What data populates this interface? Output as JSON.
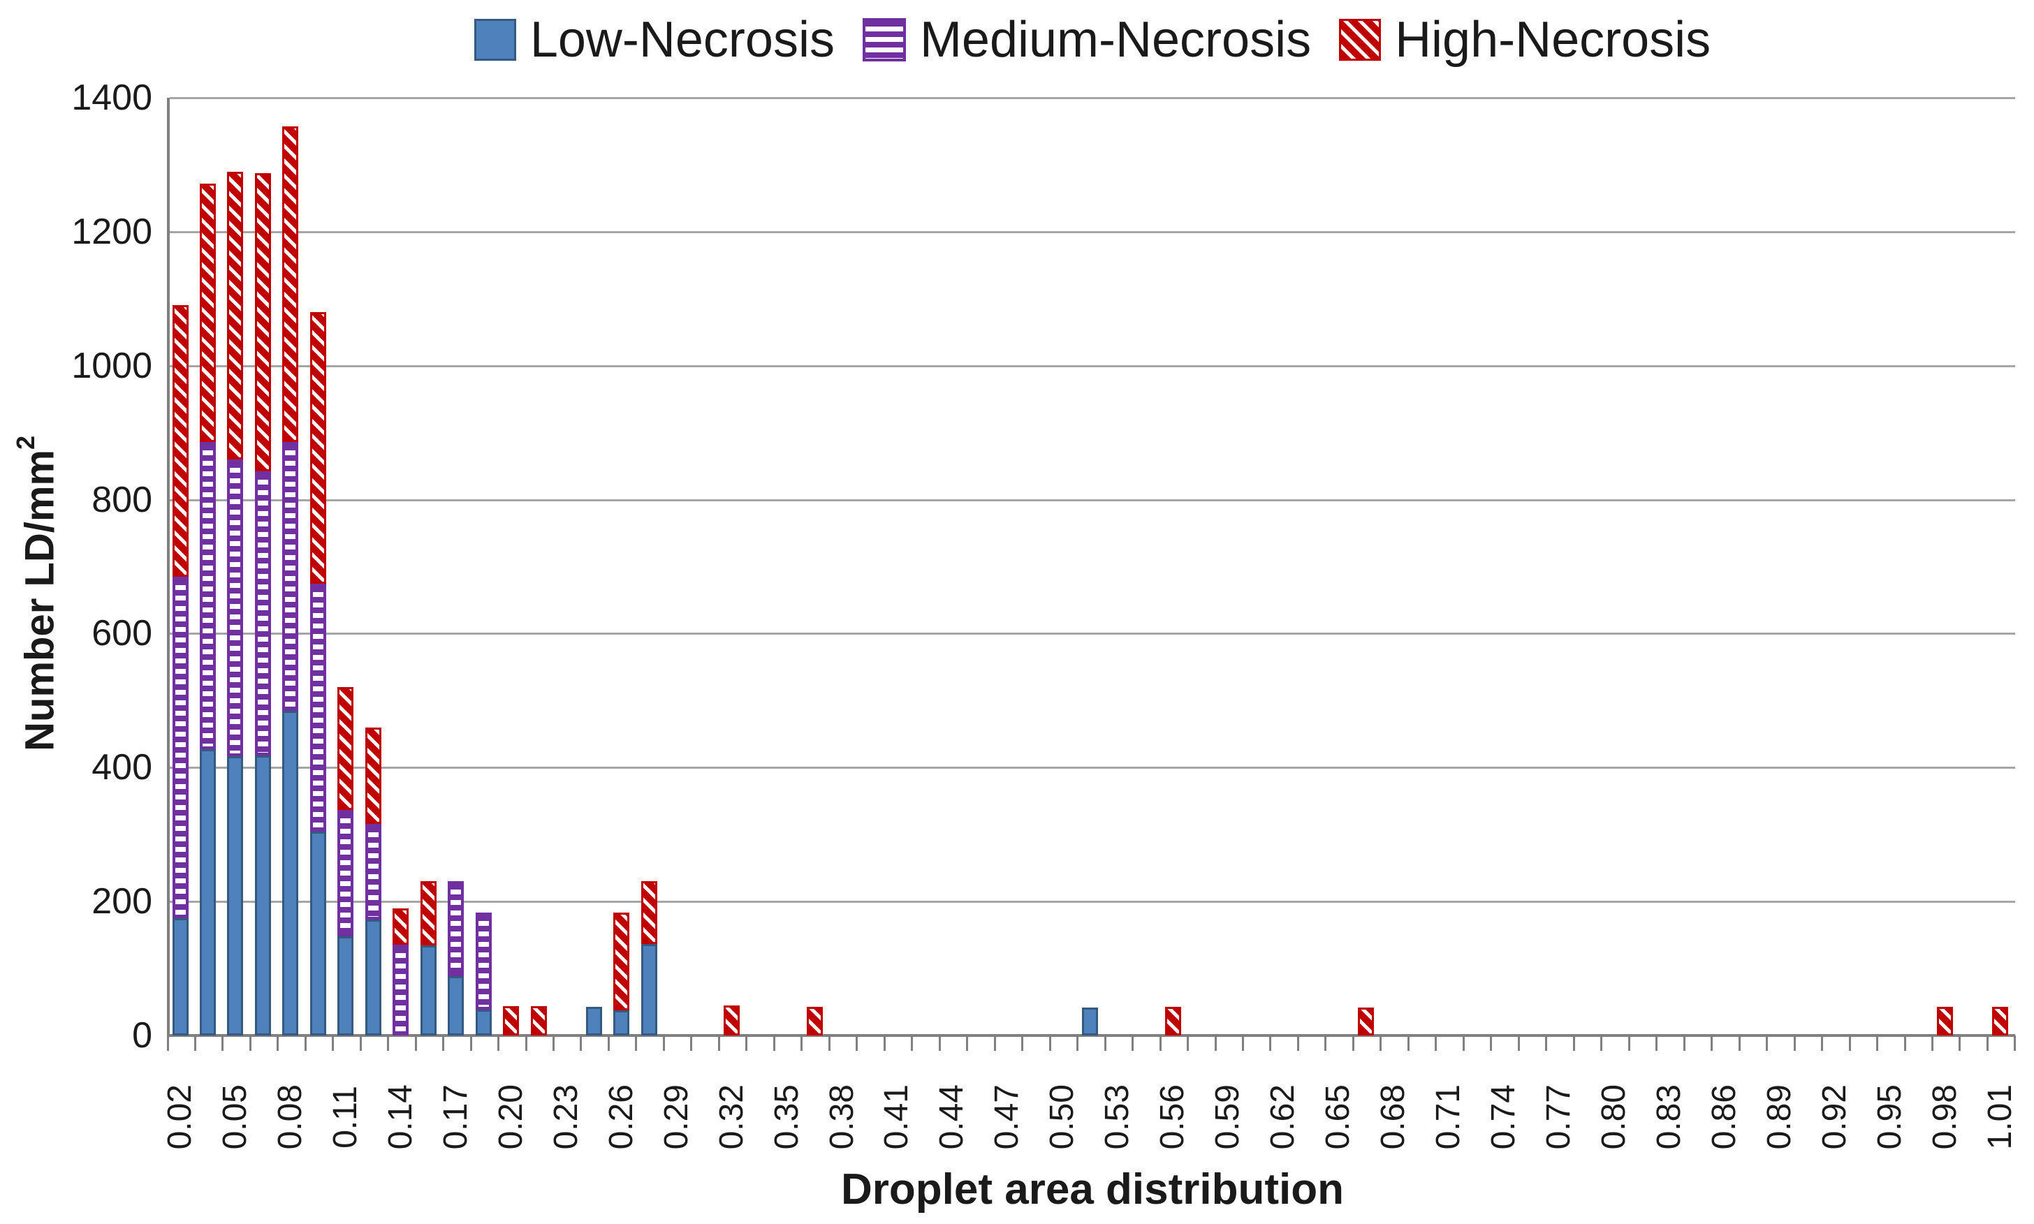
{
  "chart_data": {
    "type": "bar",
    "stacked": true,
    "title": "",
    "xlabel": "Droplet area distribution",
    "ylabel_base": "Number LD/mm",
    "ylabel_sup": "2",
    "ylim": [
      0,
      1400
    ],
    "ytick_step": 200,
    "ytick_labels": [
      "0",
      "200",
      "400",
      "600",
      "800",
      "1000",
      "1200",
      "1400"
    ],
    "grid": true,
    "legend_position": "top",
    "x_label_every": 2,
    "x_categories": [
      0.02,
      0.035,
      0.05,
      0.065,
      0.08,
      0.095,
      0.11,
      0.125,
      0.14,
      0.155,
      0.17,
      0.185,
      0.2,
      0.215,
      0.23,
      0.245,
      0.26,
      0.275,
      0.29,
      0.305,
      0.32,
      0.335,
      0.35,
      0.365,
      0.38,
      0.395,
      0.41,
      0.425,
      0.44,
      0.455,
      0.47,
      0.485,
      0.5,
      0.515,
      0.53,
      0.545,
      0.56,
      0.575,
      0.59,
      0.605,
      0.62,
      0.635,
      0.65,
      0.665,
      0.68,
      0.695,
      0.71,
      0.725,
      0.74,
      0.755,
      0.77,
      0.785,
      0.8,
      0.815,
      0.83,
      0.845,
      0.86,
      0.875,
      0.89,
      0.905,
      0.92,
      0.935,
      0.95,
      0.965,
      0.98,
      0.995,
      1.01
    ],
    "x_tick_labels": [
      "0.02",
      "0.05",
      "0.08",
      "0.11",
      "0.14",
      "0.17",
      "0.20",
      "0.23",
      "0.26",
      "0.29",
      "0.32",
      "0.35",
      "0.38",
      "0.41",
      "0.44",
      "0.47",
      "0.50",
      "0.53",
      "0.56",
      "0.59",
      "0.62",
      "0.65",
      "0.68",
      "0.71",
      "0.74",
      "0.77",
      "0.80",
      "0.83",
      "0.86",
      "0.89",
      "0.92",
      "0.95",
      "0.98",
      "1.01"
    ],
    "series": [
      {
        "name": "Low-Necrosis",
        "color": "#4F81BD",
        "pattern": "solid",
        "values": [
          175,
          427,
          417,
          418,
          485,
          304,
          148,
          173,
          0,
          134,
          89,
          39,
          0,
          0,
          0,
          43,
          38,
          137,
          0,
          0,
          0,
          0,
          0,
          0,
          0,
          0,
          0,
          0,
          0,
          0,
          0,
          0,
          0,
          42,
          0,
          0,
          0,
          0,
          0,
          0,
          0,
          0,
          0,
          0,
          0,
          0,
          0,
          0,
          0,
          0,
          0,
          0,
          0,
          0,
          0,
          0,
          0,
          0,
          0,
          0,
          0,
          0,
          0,
          0,
          0,
          0,
          0
        ]
      },
      {
        "name": "Medium-Necrosis",
        "color": "#7030A0",
        "pattern": "horizontal-stripes",
        "values": [
          510,
          459,
          443,
          424,
          401,
          370,
          189,
          143,
          136,
          0,
          141,
          145,
          0,
          0,
          0,
          0,
          0,
          0,
          0,
          0,
          0,
          0,
          0,
          0,
          0,
          0,
          0,
          0,
          0,
          0,
          0,
          0,
          0,
          0,
          0,
          0,
          0,
          0,
          0,
          0,
          0,
          0,
          0,
          0,
          0,
          0,
          0,
          0,
          0,
          0,
          0,
          0,
          0,
          0,
          0,
          0,
          0,
          0,
          0,
          0,
          0,
          0,
          0,
          0,
          0,
          0,
          0
        ]
      },
      {
        "name": "High-Necrosis",
        "color": "#C00000",
        "pattern": "diagonal-stripes",
        "values": [
          405,
          386,
          430,
          445,
          471,
          406,
          183,
          144,
          54,
          96,
          0,
          0,
          44,
          44,
          0,
          0,
          146,
          93,
          0,
          0,
          45,
          0,
          0,
          43,
          0,
          0,
          0,
          0,
          0,
          0,
          0,
          0,
          0,
          0,
          0,
          0,
          43,
          0,
          0,
          0,
          0,
          0,
          0,
          42,
          0,
          0,
          0,
          0,
          0,
          0,
          0,
          0,
          0,
          0,
          0,
          0,
          0,
          0,
          0,
          0,
          0,
          0,
          0,
          0,
          43,
          0,
          43
        ]
      }
    ]
  }
}
